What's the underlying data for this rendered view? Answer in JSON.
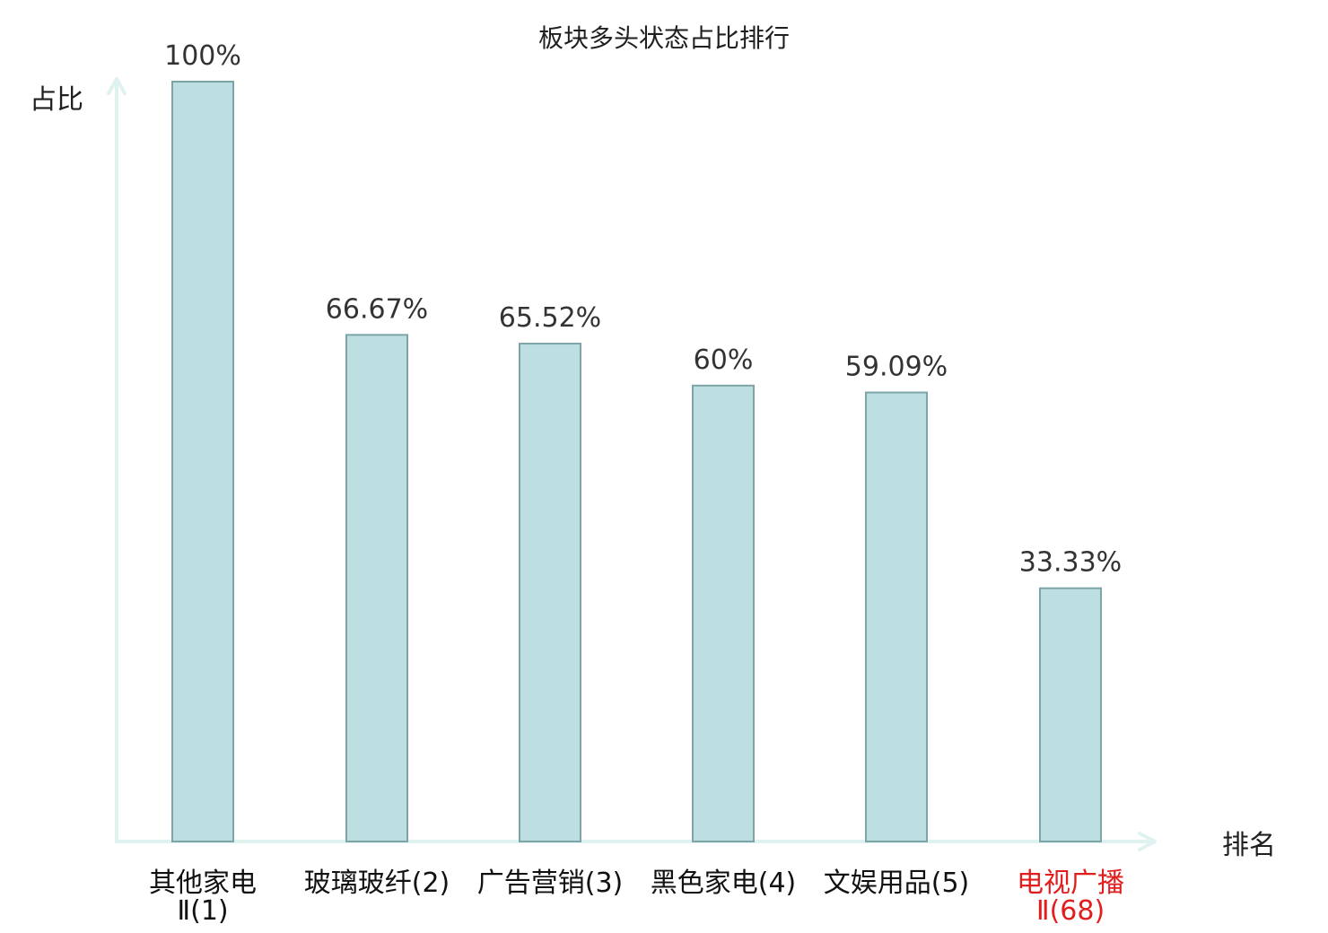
{
  "chart_data": {
    "type": "bar",
    "title": "板块多头状态占比排行",
    "xlabel": "排名",
    "ylabel": "占比",
    "ylim": [
      0,
      100
    ],
    "grid": false,
    "categories": [
      {
        "line1": "其他家电",
        "line2": "Ⅱ(1)",
        "highlight": false
      },
      {
        "line1": "玻璃玻纤(2)",
        "line2": "",
        "highlight": false
      },
      {
        "line1": "广告营销(3)",
        "line2": "",
        "highlight": false
      },
      {
        "line1": "黑色家电(4)",
        "line2": "",
        "highlight": false
      },
      {
        "line1": "文娱用品(5)",
        "line2": "",
        "highlight": false
      },
      {
        "line1": "电视广播",
        "line2": "Ⅱ(68)",
        "highlight": true
      }
    ],
    "values": [
      100,
      66.67,
      65.52,
      60,
      59.09,
      33.33
    ],
    "value_labels": [
      "100%",
      "66.67%",
      "65.52%",
      "60%",
      "59.09%",
      "33.33%"
    ],
    "colors": {
      "bar_fill": "#bddfe2",
      "bar_stroke": "#7da4a7",
      "axis": "#dff2ef",
      "highlight_text": "#e11d1d"
    }
  }
}
